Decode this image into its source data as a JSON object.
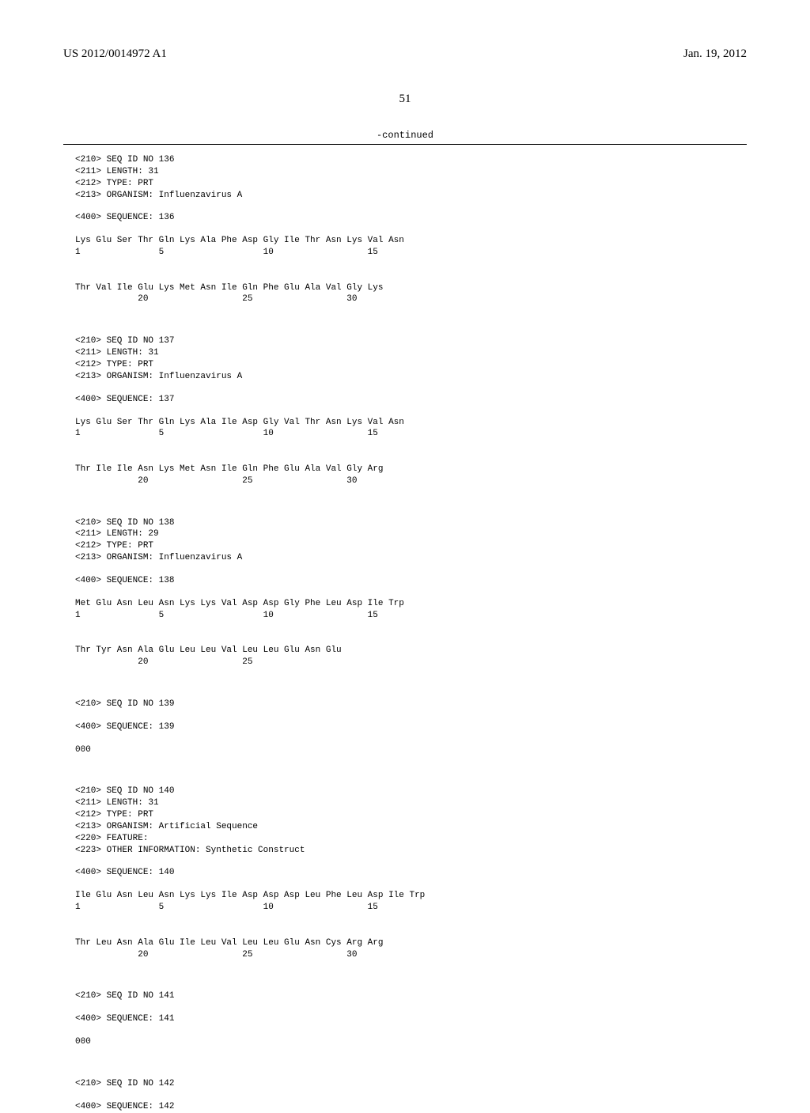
{
  "header": {
    "pub_number": "US 2012/0014972 A1",
    "date": "Jan. 19, 2012"
  },
  "page_number": "51",
  "continued_label": "-continued",
  "sequences": [
    {
      "id": "136",
      "length": "31",
      "type": "PRT",
      "organism": "Influenzavirus A",
      "lines": [
        "Lys Glu Ser Thr Gln Lys Ala Phe Asp Gly Ile Thr Asn Lys Val Asn",
        "1               5                   10                  15",
        "",
        "",
        "Thr Val Ile Glu Lys Met Asn Ile Gln Phe Glu Ala Val Gly Lys",
        "            20                  25                  30"
      ]
    },
    {
      "id": "137",
      "length": "31",
      "type": "PRT",
      "organism": "Influenzavirus A",
      "lines": [
        "Lys Glu Ser Thr Gln Lys Ala Ile Asp Gly Val Thr Asn Lys Val Asn",
        "1               5                   10                  15",
        "",
        "",
        "Thr Ile Ile Asn Lys Met Asn Ile Gln Phe Glu Ala Val Gly Arg",
        "            20                  25                  30"
      ]
    },
    {
      "id": "138",
      "length": "29",
      "type": "PRT",
      "organism": "Influenzavirus A",
      "lines": [
        "Met Glu Asn Leu Asn Lys Lys Val Asp Asp Gly Phe Leu Asp Ile Trp",
        "1               5                   10                  15",
        "",
        "",
        "Thr Tyr Asn Ala Glu Leu Leu Val Leu Leu Glu Asn Glu",
        "            20                  25"
      ]
    },
    {
      "id": "139",
      "empty": true,
      "lines": [
        "000"
      ]
    },
    {
      "id": "140",
      "length": "31",
      "type": "PRT",
      "organism": "Artificial Sequence",
      "feature": true,
      "other_info": "Synthetic Construct",
      "lines": [
        "Ile Glu Asn Leu Asn Lys Lys Ile Asp Asp Asp Leu Phe Leu Asp Ile Trp",
        "1               5                   10                  15",
        "",
        "",
        "Thr Leu Asn Ala Glu Ile Leu Val Leu Leu Glu Asn Cys Arg Arg",
        "            20                  25                  30"
      ]
    },
    {
      "id": "141",
      "empty": true,
      "lines": [
        "000"
      ]
    },
    {
      "id": "142",
      "empty": true,
      "no_body": true
    }
  ],
  "tags": {
    "seq_id": "<210> SEQ ID NO ",
    "length": "<211> LENGTH: ",
    "type": "<212> TYPE: ",
    "organism": "<213> ORGANISM: ",
    "feature": "<220> FEATURE:",
    "other_info": "<223> OTHER INFORMATION: ",
    "sequence": "<400> SEQUENCE: "
  }
}
